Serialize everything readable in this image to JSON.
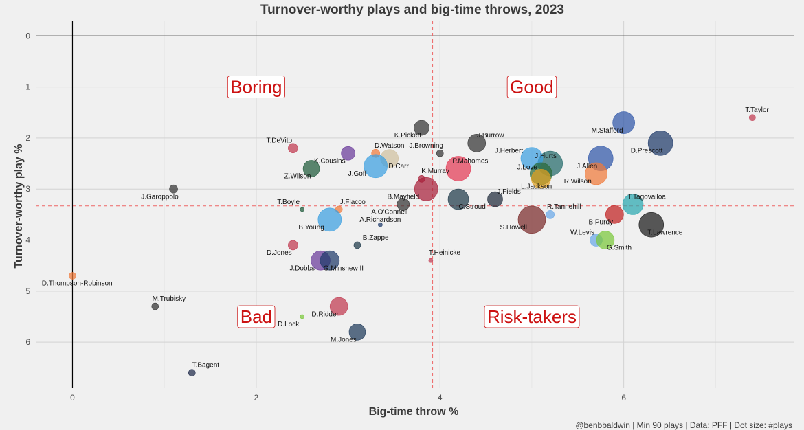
{
  "chart_data": {
    "type": "scatter",
    "title": "Turnover-worthy plays and big-time throws, 2023",
    "xlabel": "Big-time throw %",
    "ylabel": "Turnover-worthy play %",
    "caption": "@benbbaldwin | Min 90 plays | Data: PFF | Dot size: #plays",
    "xlim": [
      -0.4,
      7.85
    ],
    "ylim": [
      -0.3,
      6.9
    ],
    "y_reversed": true,
    "x_ticks": [
      0,
      2,
      4,
      6
    ],
    "y_ticks": [
      0,
      1,
      2,
      3,
      4,
      5,
      6
    ],
    "grid": true,
    "mean_lines": {
      "x": 3.92,
      "y": 3.33,
      "color": "#ee6666"
    },
    "quadrant_labels": [
      {
        "text": "Boring",
        "x": 2.0,
        "y": 1.0
      },
      {
        "text": "Good",
        "x": 5.0,
        "y": 1.0
      },
      {
        "text": "Bad",
        "x": 2.0,
        "y": 5.5
      },
      {
        "text": "Risk-takers",
        "x": 5.0,
        "y": 5.5
      }
    ],
    "points": [
      {
        "name": "T.Taylor",
        "x": 7.4,
        "y": 1.6,
        "size": 4.5,
        "color": "#c0394f",
        "lx": 7.45,
        "ly": 1.45,
        "anchor": "middle"
      },
      {
        "name": "M.Stafford",
        "x": 6.0,
        "y": 1.7,
        "size": 16,
        "color": "#2f56a8",
        "lx": 5.82,
        "ly": 1.85,
        "anchor": "middle"
      },
      {
        "name": "D.Prescott",
        "x": 6.4,
        "y": 2.1,
        "size": 18,
        "color": "#1f3a6a",
        "lx": 6.25,
        "ly": 2.25,
        "anchor": "middle"
      },
      {
        "name": "J.Allen",
        "x": 5.75,
        "y": 2.4,
        "size": 18,
        "color": "#2f56a8",
        "lx": 5.6,
        "ly": 2.55,
        "anchor": "middle"
      },
      {
        "name": "R.Wilson",
        "x": 5.7,
        "y": 2.7,
        "size": 16,
        "color": "#f07a3a",
        "lx": 5.5,
        "ly": 2.85,
        "anchor": "middle"
      },
      {
        "name": "J.Hurts",
        "x": 5.2,
        "y": 2.5,
        "size": 18,
        "color": "#236a6a",
        "lx": 5.15,
        "ly": 2.35,
        "anchor": "middle"
      },
      {
        "name": "J.Herbert",
        "x": 5.0,
        "y": 2.4,
        "size": 16,
        "color": "#3ba0e0",
        "lx": 4.75,
        "ly": 2.25,
        "anchor": "middle"
      },
      {
        "name": "J.Love",
        "x": 5.1,
        "y": 2.7,
        "size": 16,
        "color": "#2a6a3a",
        "lx": 4.95,
        "ly": 2.57,
        "anchor": "middle"
      },
      {
        "name": "L.Jackson",
        "x": 5.1,
        "y": 2.8,
        "size": 14,
        "color": "#e0a020",
        "lx": 5.05,
        "ly": 2.95,
        "anchor": "middle"
      },
      {
        "name": "J.Burrow",
        "x": 4.4,
        "y": 2.1,
        "size": 13,
        "color": "#333333",
        "lx": 4.55,
        "ly": 1.95,
        "anchor": "middle"
      },
      {
        "name": "K.Pickett",
        "x": 3.8,
        "y": 1.8,
        "size": 11,
        "color": "#333333",
        "lx": 3.65,
        "ly": 1.95,
        "anchor": "middle"
      },
      {
        "name": "J.Browning",
        "x": 4.0,
        "y": 2.3,
        "size": 5,
        "color": "#333333",
        "lx": 3.85,
        "ly": 2.15,
        "anchor": "middle"
      },
      {
        "name": "P.Mahomes",
        "x": 4.2,
        "y": 2.6,
        "size": 18,
        "color": "#e33a55",
        "lx": 4.33,
        "ly": 2.45,
        "anchor": "middle"
      },
      {
        "name": "K.Murray",
        "x": 3.8,
        "y": 2.8,
        "size": 5,
        "color": "#a8203a",
        "lx": 3.95,
        "ly": 2.65,
        "anchor": "middle"
      },
      {
        "name": "B.Mayfield",
        "x": 3.85,
        "y": 3.0,
        "size": 17,
        "color": "#a8203a",
        "lx": 3.6,
        "ly": 3.15,
        "anchor": "middle"
      },
      {
        "name": "C.Stroud",
        "x": 4.2,
        "y": 3.2,
        "size": 15,
        "color": "#1f3a4a",
        "lx": 4.35,
        "ly": 3.35,
        "anchor": "middle"
      },
      {
        "name": "J.Fields",
        "x": 4.6,
        "y": 3.2,
        "size": 11,
        "color": "#1f2a3a",
        "lx": 4.75,
        "ly": 3.05,
        "anchor": "middle"
      },
      {
        "name": "D.Watson",
        "x": 3.3,
        "y": 2.3,
        "size": 6,
        "color": "#f07a3a",
        "lx": 3.45,
        "ly": 2.15,
        "anchor": "middle"
      },
      {
        "name": "D.Carr",
        "x": 3.45,
        "y": 2.4,
        "size": 13,
        "color": "#d0c0a0",
        "lx": 3.55,
        "ly": 2.55,
        "anchor": "middle"
      },
      {
        "name": "J.Goff",
        "x": 3.3,
        "y": 2.55,
        "size": 17,
        "color": "#3ba0e0",
        "lx": 3.1,
        "ly": 2.7,
        "anchor": "middle"
      },
      {
        "name": "K.Cousins",
        "x": 3.0,
        "y": 2.3,
        "size": 10,
        "color": "#6a3a9a",
        "lx": 2.8,
        "ly": 2.45,
        "anchor": "middle"
      },
      {
        "name": "T.DeVito",
        "x": 2.4,
        "y": 2.2,
        "size": 7,
        "color": "#c0394f",
        "lx": 2.25,
        "ly": 2.05,
        "anchor": "middle"
      },
      {
        "name": "Z.Wilson",
        "x": 2.6,
        "y": 2.6,
        "size": 12,
        "color": "#1f5a3a",
        "lx": 2.45,
        "ly": 2.75,
        "anchor": "middle"
      },
      {
        "name": "J.Garoppolo",
        "x": 1.1,
        "y": 3.0,
        "size": 6,
        "color": "#333333",
        "lx": 0.95,
        "ly": 3.15,
        "anchor": "middle"
      },
      {
        "name": "T.Boyle",
        "x": 2.5,
        "y": 3.4,
        "size": 3,
        "color": "#1f5a3a",
        "lx": 2.35,
        "ly": 3.25,
        "anchor": "middle"
      },
      {
        "name": "J.Flacco",
        "x": 2.9,
        "y": 3.4,
        "size": 5,
        "color": "#f07a3a",
        "lx": 3.05,
        "ly": 3.25,
        "anchor": "middle"
      },
      {
        "name": "A.O'Connell",
        "x": 3.6,
        "y": 3.3,
        "size": 9,
        "color": "#333333",
        "lx": 3.45,
        "ly": 3.45,
        "anchor": "middle"
      },
      {
        "name": "B.Young",
        "x": 2.8,
        "y": 3.6,
        "size": 17,
        "color": "#3ba0e0",
        "lx": 2.6,
        "ly": 3.75,
        "anchor": "middle"
      },
      {
        "name": "A.Richardson",
        "x": 3.35,
        "y": 3.7,
        "size": 3,
        "color": "#1f3a6a",
        "lx": 3.35,
        "ly": 3.6,
        "anchor": "middle"
      },
      {
        "name": "B.Zappe",
        "x": 3.1,
        "y": 4.1,
        "size": 5,
        "color": "#1f3a4a",
        "lx": 3.3,
        "ly": 3.95,
        "anchor": "middle"
      },
      {
        "name": "D.Jones",
        "x": 2.4,
        "y": 4.1,
        "size": 7,
        "color": "#c0394f",
        "lx": 2.25,
        "ly": 4.25,
        "anchor": "middle"
      },
      {
        "name": "J.Dobbs",
        "x": 2.7,
        "y": 4.4,
        "size": 14,
        "color": "#6a3a9a",
        "lx": 2.5,
        "ly": 4.55,
        "anchor": "middle"
      },
      {
        "name": "G.Minshew II",
        "x": 2.8,
        "y": 4.4,
        "size": 14,
        "color": "#1f3a6a",
        "lx": 2.95,
        "ly": 4.55,
        "anchor": "middle"
      },
      {
        "name": "T.Heinicke",
        "x": 3.9,
        "y": 4.4,
        "size": 3,
        "color": "#c0394f",
        "lx": 4.05,
        "ly": 4.25,
        "anchor": "middle"
      },
      {
        "name": "S.Howell",
        "x": 5.0,
        "y": 3.6,
        "size": 20,
        "color": "#7a2a2a",
        "lx": 4.8,
        "ly": 3.75,
        "anchor": "middle"
      },
      {
        "name": "R.Tannehill",
        "x": 5.2,
        "y": 3.5,
        "size": 6,
        "color": "#6aa8e8",
        "lx": 5.35,
        "ly": 3.35,
        "anchor": "middle"
      },
      {
        "name": "T.Tagovailoa",
        "x": 6.1,
        "y": 3.3,
        "size": 15,
        "color": "#2aa8b0",
        "lx": 6.25,
        "ly": 3.15,
        "anchor": "middle"
      },
      {
        "name": "B.Purdy",
        "x": 5.9,
        "y": 3.5,
        "size": 13,
        "color": "#c02020",
        "lx": 5.75,
        "ly": 3.65,
        "anchor": "middle"
      },
      {
        "name": "T.Lawrence",
        "x": 6.3,
        "y": 3.7,
        "size": 18,
        "color": "#1a1a1a",
        "lx": 6.45,
        "ly": 3.85,
        "anchor": "middle"
      },
      {
        "name": "W.Levis",
        "x": 5.7,
        "y": 4.0,
        "size": 9,
        "color": "#6aa8e8",
        "lx": 5.55,
        "ly": 3.85,
        "anchor": "middle"
      },
      {
        "name": "G.Smith",
        "x": 5.8,
        "y": 4.0,
        "size": 13,
        "color": "#7ac83a",
        "lx": 5.95,
        "ly": 4.15,
        "anchor": "middle"
      },
      {
        "name": "D.Thompson-Robinson",
        "x": 0.0,
        "y": 4.7,
        "size": 5,
        "color": "#f07a3a",
        "lx": 0.05,
        "ly": 4.85,
        "anchor": "middle"
      },
      {
        "name": "M.Trubisky",
        "x": 0.9,
        "y": 5.3,
        "size": 5,
        "color": "#333333",
        "lx": 1.05,
        "ly": 5.15,
        "anchor": "middle"
      },
      {
        "name": "D.Ridder",
        "x": 2.9,
        "y": 5.3,
        "size": 13,
        "color": "#c0394f",
        "lx": 2.75,
        "ly": 5.45,
        "anchor": "middle"
      },
      {
        "name": "D.Lock",
        "x": 2.5,
        "y": 5.5,
        "size": 3,
        "color": "#7ac83a",
        "lx": 2.35,
        "ly": 5.65,
        "anchor": "middle"
      },
      {
        "name": "M.Jones",
        "x": 3.1,
        "y": 5.8,
        "size": 12,
        "color": "#1f3a5a",
        "lx": 2.95,
        "ly": 5.95,
        "anchor": "middle"
      },
      {
        "name": "T.Bagent",
        "x": 1.3,
        "y": 6.6,
        "size": 5,
        "color": "#1f2a4a",
        "lx": 1.45,
        "ly": 6.45,
        "anchor": "middle"
      }
    ]
  }
}
